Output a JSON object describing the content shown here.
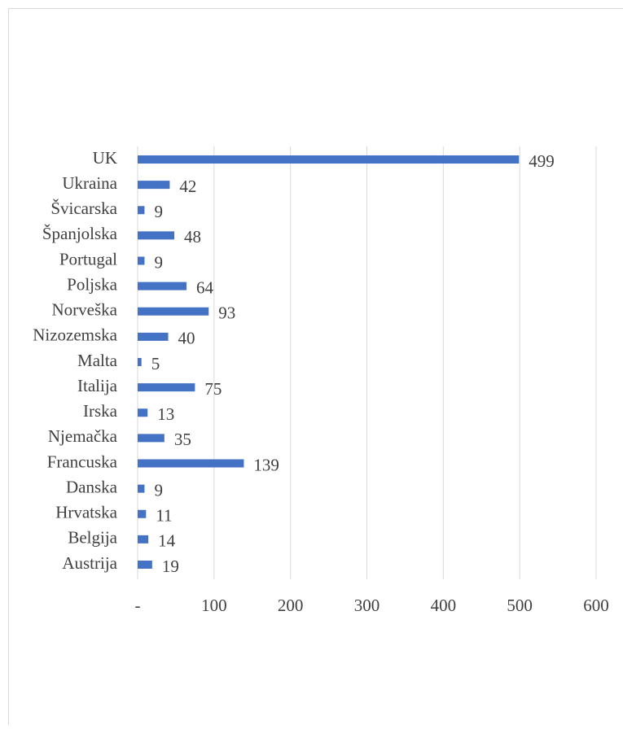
{
  "chart_data": {
    "type": "barh",
    "categories": [
      "UK",
      "Ukraina",
      "Švicarska",
      "Španjolska",
      "Portugal",
      "Poljska",
      "Norveška",
      "Nizozemska",
      "Malta",
      "Italija",
      "Irska",
      "Njemačka",
      "Francuska",
      "Danska",
      "Hrvatska",
      "Belgija",
      "Austrija"
    ],
    "values": [
      499,
      42,
      9,
      48,
      9,
      64,
      93,
      40,
      5,
      75,
      13,
      35,
      139,
      9,
      11,
      14,
      19
    ],
    "color": "#4472c4",
    "xlim": [
      0,
      600
    ],
    "xticks": [
      {
        "value": 0,
        "label": "-"
      },
      100,
      200,
      300,
      400,
      500,
      600
    ],
    "grid": true
  }
}
